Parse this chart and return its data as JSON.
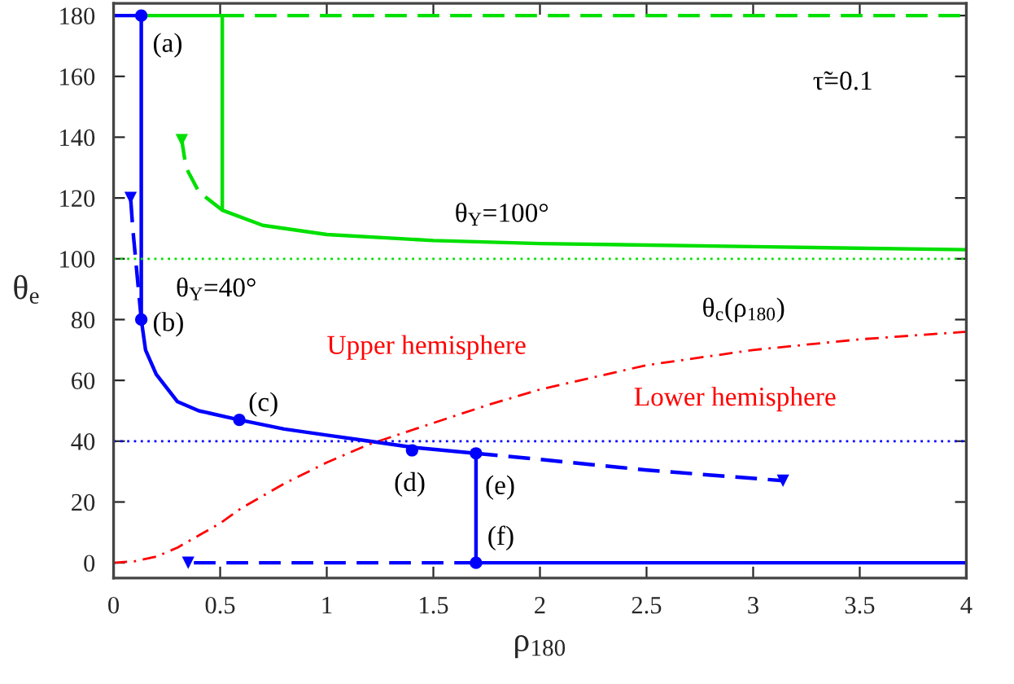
{
  "chart_data": {
    "type": "line",
    "xlabel": "ρ$_{180}$",
    "ylabel": "θ$_{e}$",
    "xlim": [
      0,
      4
    ],
    "ylim": [
      -5,
      184
    ],
    "xticks": [
      0,
      0.5,
      1,
      1.5,
      2,
      2.5,
      3,
      3.5,
      4
    ],
    "yticks": [
      0,
      20,
      40,
      60,
      80,
      100,
      120,
      140,
      160,
      180
    ],
    "grid": false,
    "legend": false,
    "series": [
      {
        "color": "#0000ff",
        "line_style": "solid",
        "x": [
          0,
          0.13,
          0.13,
          0.15,
          0.2,
          0.3,
          0.4,
          0.59,
          0.8,
          1.0,
          1.2,
          1.4,
          1.7,
          1.7,
          4
        ],
        "values": [
          180,
          180,
          80,
          70,
          62,
          53,
          50,
          47,
          44,
          42,
          40,
          38,
          36,
          0,
          0
        ]
      },
      {
        "color": "#0000ff",
        "line_style": "dashed",
        "x": [
          1.7,
          2.0,
          2.5,
          3.14
        ],
        "values": [
          36,
          34,
          30.5,
          27
        ]
      },
      {
        "color": "#0000ff",
        "line_style": "dashed",
        "x": [
          0.13,
          0.11,
          0.09,
          0.08
        ],
        "values": [
          80,
          95,
          110,
          120
        ]
      },
      {
        "color": "#0000ff",
        "line_style": "dashed",
        "x": [
          1.7,
          0.35
        ],
        "values": [
          0,
          0
        ]
      },
      {
        "color": "#00e000",
        "line_style": "solid",
        "x": [
          0.13,
          0.51,
          0.51,
          0.7,
          1.0,
          1.5,
          2.0,
          3.0,
          4.0
        ],
        "values": [
          180,
          180,
          116,
          111,
          108,
          106,
          105,
          104,
          103
        ]
      },
      {
        "color": "#00e000",
        "line_style": "dashed",
        "x": [
          0.51,
          4.0
        ],
        "values": [
          180,
          180
        ]
      },
      {
        "color": "#00e000",
        "line_style": "dashed",
        "x": [
          0.51,
          0.4,
          0.34,
          0.32
        ],
        "values": [
          116,
          122,
          130,
          139
        ]
      },
      {
        "color": "#ff0000",
        "line_style": "dashdot",
        "x": [
          0,
          0.1,
          0.2,
          0.3,
          0.4,
          0.5,
          0.6,
          0.8,
          1.0,
          1.2,
          1.5,
          1.76,
          2.0,
          2.5,
          3.0,
          3.5,
          4.0
        ],
        "values": [
          0,
          0.5,
          2,
          5,
          9,
          13,
          18,
          26,
          33,
          39,
          46,
          52,
          57,
          65,
          70,
          73.5,
          76
        ]
      },
      {
        "type": "scatter",
        "color": "#0000ff",
        "marker": "circle",
        "x": [
          0.13,
          0.13,
          0.59,
          1.4,
          1.7,
          1.7
        ],
        "values": [
          180,
          80,
          47,
          37,
          36,
          0
        ]
      },
      {
        "type": "scatter",
        "color": "#0000ff",
        "marker": "triangle",
        "x": [
          0.08,
          0.35,
          3.14
        ],
        "values": [
          120,
          0,
          27
        ]
      },
      {
        "type": "scatter",
        "color": "#00e000",
        "marker": "triangle",
        "x": [
          0.32
        ],
        "values": [
          139
        ]
      }
    ],
    "ref_lines": [
      {
        "axis": "y",
        "value": 100,
        "color": "#00e000",
        "line_style": "dotted"
      },
      {
        "axis": "y",
        "value": 40,
        "color": "#0000ff",
        "line_style": "dotted"
      }
    ],
    "annotations": [
      {
        "text": "(a)",
        "x": 0.13,
        "y": 180
      },
      {
        "text": "(b)",
        "x": 0.13,
        "y": 80
      },
      {
        "text": "(c)",
        "x": 0.59,
        "y": 47
      },
      {
        "text": "(d)",
        "x": 1.4,
        "y": 37
      },
      {
        "text": "(e)",
        "x": 1.7,
        "y": 36
      },
      {
        "text": "(f)",
        "x": 1.7,
        "y": 0
      },
      "θ$_{Y}$=40°",
      "θ$_{Y}$=100°",
      "θ$_{c}$(ρ$_{180}$)",
      "Upper hemisphere",
      "Lower hemisphere",
      "τ̃=0.1"
    ]
  }
}
